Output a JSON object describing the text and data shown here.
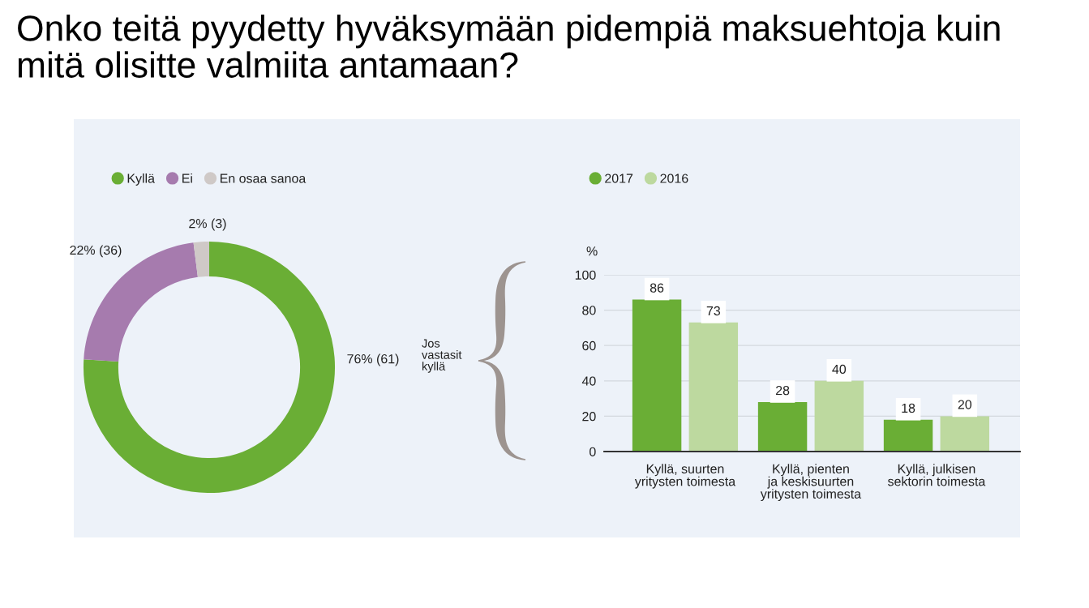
{
  "chart_data": [
    {
      "type": "donut",
      "title": "Onko teitä pyydetty hyväksymään pidempiä maksuehtoja kuin\nmitä olisitte valmiita antamaan?",
      "categories": [
        "Kyllä",
        "Ei",
        "En osaa sanoa"
      ],
      "values": [
        76,
        22,
        2
      ],
      "colors": [
        "#6aae35",
        "#a67bae",
        "#cfc9c7"
      ],
      "value_labels": [
        "76% (61)",
        "22% (36)",
        "2% (3)"
      ],
      "legend": "top left"
    },
    {
      "type": "bar",
      "categories": [
        "Kyllä, suurten\nyritysten toimesta",
        "Kyllä, pienten\nja keskisuurten\nyritysten toimesta",
        "Kyllä, julkisen\nsektorin toimesta"
      ],
      "series": [
        {
          "name": "2017",
          "color": "#6aae35",
          "values": [
            86,
            28,
            18
          ]
        },
        {
          "name": "2016",
          "color": "#bdd99f",
          "values": [
            73,
            40,
            20
          ]
        }
      ],
      "ylabel": "%",
      "ylim": [
        0,
        100
      ],
      "yticks": [
        0,
        20,
        40,
        60,
        80,
        100
      ],
      "grid": "y",
      "legend": "top left",
      "data_labels": true,
      "annotations": [
        "Jos\nvastasit\nkyllä"
      ]
    }
  ]
}
